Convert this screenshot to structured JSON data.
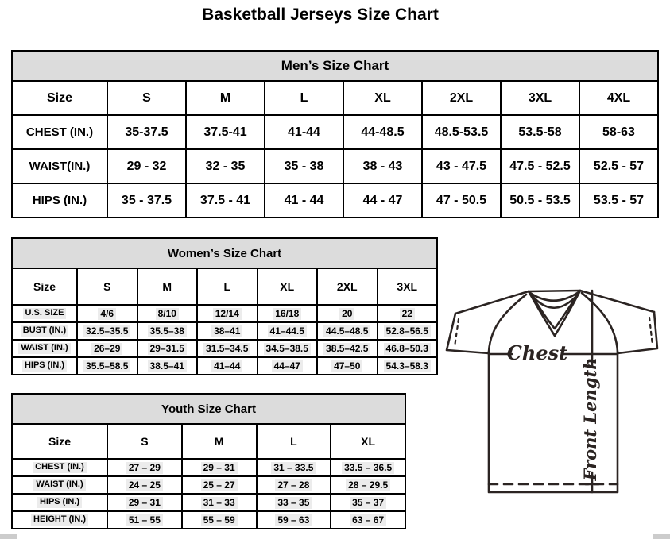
{
  "page_title": "Basketball Jerseys Size Chart",
  "mens": {
    "header": "Men’s Size Chart",
    "columns": [
      "Size",
      "S",
      "M",
      "L",
      "XL",
      "2XL",
      "3XL",
      "4XL"
    ],
    "rows": [
      {
        "label": "CHEST (IN.)",
        "values": [
          "35-37.5",
          "37.5-41",
          "41-44",
          "44-48.5",
          "48.5-53.5",
          "53.5-58",
          "58-63"
        ]
      },
      {
        "label": "WAIST(IN.)",
        "values": [
          "29 - 32",
          "32 - 35",
          "35 - 38",
          "38 - 43",
          "43 - 47.5",
          "47.5 - 52.5",
          "52.5 - 57"
        ]
      },
      {
        "label": "HIPS (IN.)",
        "values": [
          "35 - 37.5",
          "37.5 - 41",
          "41 - 44",
          "44 - 47",
          "47 - 50.5",
          "50.5 - 53.5",
          "53.5 - 57"
        ]
      }
    ]
  },
  "womens": {
    "header": "Women’s Size Chart",
    "columns": [
      "Size",
      "S",
      "M",
      "L",
      "XL",
      "2XL",
      "3XL"
    ],
    "rows": [
      {
        "label": "U.S. SIZE",
        "values": [
          "4/6",
          "8/10",
          "12/14",
          "16/18",
          "20",
          "22"
        ]
      },
      {
        "label": "BUST (IN.)",
        "values": [
          "32.5–35.5",
          "35.5–38",
          "38–41",
          "41–44.5",
          "44.5–48.5",
          "52.8–56.5"
        ]
      },
      {
        "label": "WAIST (IN.)",
        "values": [
          "26–29",
          "29–31.5",
          "31.5–34.5",
          "34.5–38.5",
          "38.5–42.5",
          "46.8–50.3"
        ]
      },
      {
        "label": "HIPS (IN.)",
        "values": [
          "35.5–58.5",
          "38.5–41",
          "41–44",
          "44–47",
          "47–50",
          "54.3–58.3"
        ]
      }
    ]
  },
  "youth": {
    "header": "Youth Size Chart",
    "columns": [
      "Size",
      "S",
      "M",
      "L",
      "XL"
    ],
    "rows": [
      {
        "label": "CHEST (IN.)",
        "values": [
          "27 – 29",
          "29 – 31",
          "31 – 33.5",
          "33.5 – 36.5"
        ]
      },
      {
        "label": "WAIST (IN.)",
        "values": [
          "24 – 25",
          "25 – 27",
          "27 – 28",
          "28 – 29.5"
        ]
      },
      {
        "label": "HIPS (IN.)",
        "values": [
          "29 – 31",
          "31 – 33",
          "33 – 35",
          "35 – 37"
        ]
      },
      {
        "label": "HEIGHT (IN.)",
        "values": [
          "51 – 55",
          "55 – 59",
          "59 – 63",
          "63 – 67"
        ]
      }
    ]
  },
  "diagram": {
    "chest_label": "Chest",
    "front_length_label": "Front Length"
  },
  "colors": {
    "table_header_bg": "#dcdcdc",
    "table_border": "#000000",
    "diagram_stroke": "#2b2422",
    "value_highlight": "#ececec"
  }
}
